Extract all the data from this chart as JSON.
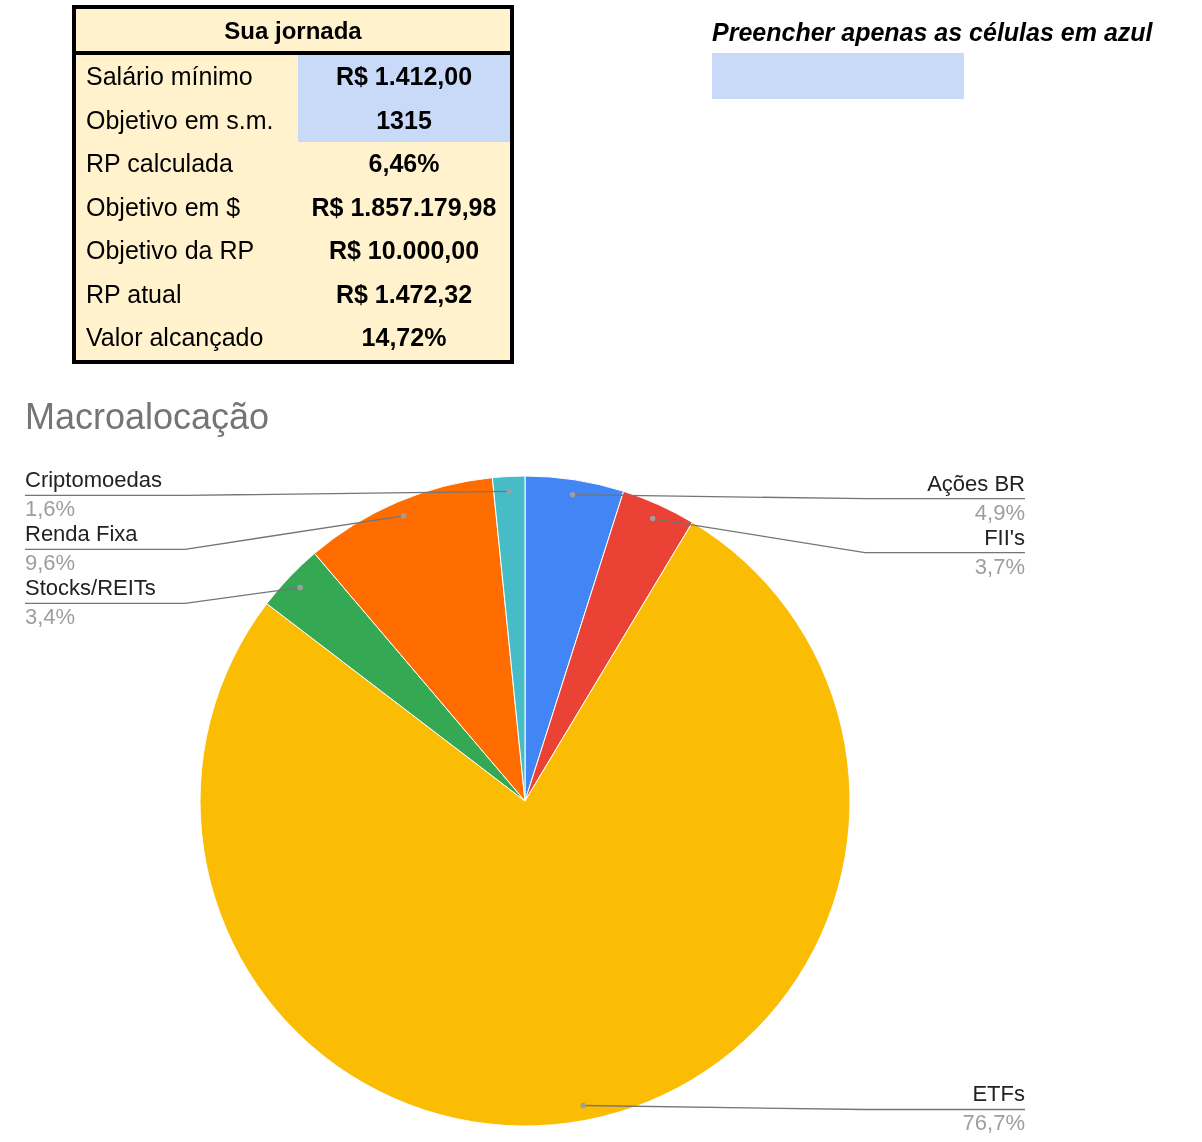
{
  "chart_data": [
    {
      "type": "other",
      "title": "Sua jornada",
      "annotations": [
        "Salário mínimo",
        "R$ 1.412,00",
        "Objetivo em s.m.",
        "1315",
        "RP calculada",
        "6,46%",
        "Objetivo em $",
        "R$ 1.857.179,98",
        "Objetivo da RP",
        "R$ 10.000,00",
        "RP atual",
        "R$ 1.472,32",
        "Valor alcançado",
        "14,72%"
      ]
    },
    {
      "type": "other",
      "annotations": [
        "Preencher apenas as células em azul"
      ]
    },
    {
      "type": "pie",
      "title": "Macroalocação",
      "categories": [
        "Ações BR",
        "FII's",
        "ETFs",
        "Stocks/REITs",
        "Renda Fixa",
        "Criptomoedas"
      ],
      "values": [
        4.9,
        3.7,
        76.7,
        3.4,
        9.6,
        1.6
      ],
      "colors": [
        "#4285f4",
        "#ea4335",
        "#fbbc04",
        "#34a853",
        "#ff6d01",
        "#46bdc6"
      ],
      "value_labels": [
        "4,9%",
        "3,7%",
        "76,7%",
        "3,4%",
        "9,6%",
        "1,6%"
      ]
    }
  ]
}
